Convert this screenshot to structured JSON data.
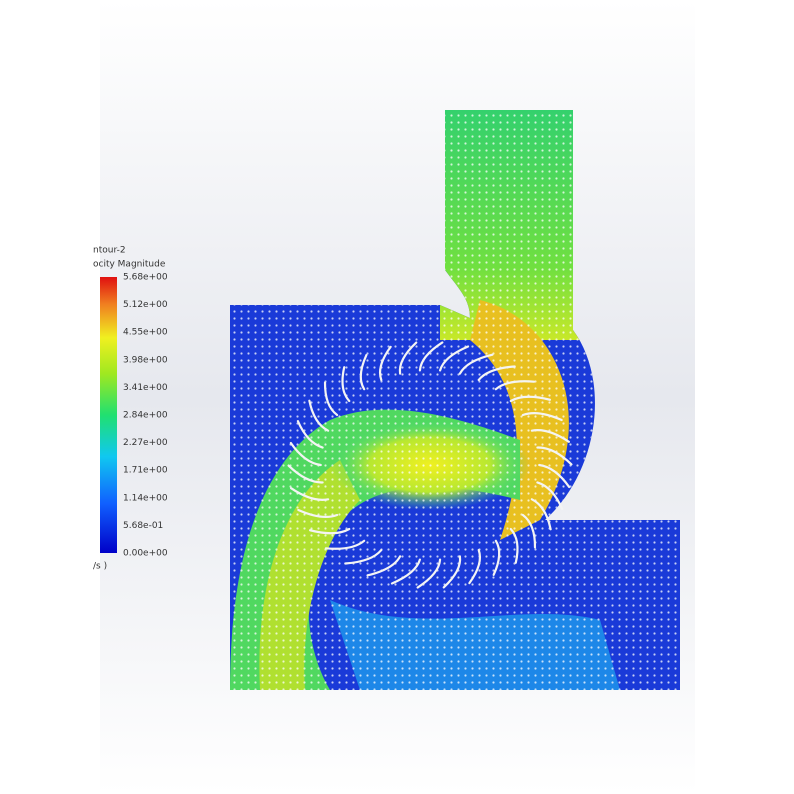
{
  "legend": {
    "title": "ntour-2",
    "quantity": "ocity Magnitude",
    "unit": "/s )",
    "labels": [
      "5.68e+00",
      "5.12e+00",
      "4.55e+00",
      "3.98e+00",
      "3.41e+00",
      "2.84e+00",
      "2.27e+00",
      "1.71e+00",
      "1.14e+00",
      "5.68e-01",
      "0.00e+00"
    ]
  }
}
